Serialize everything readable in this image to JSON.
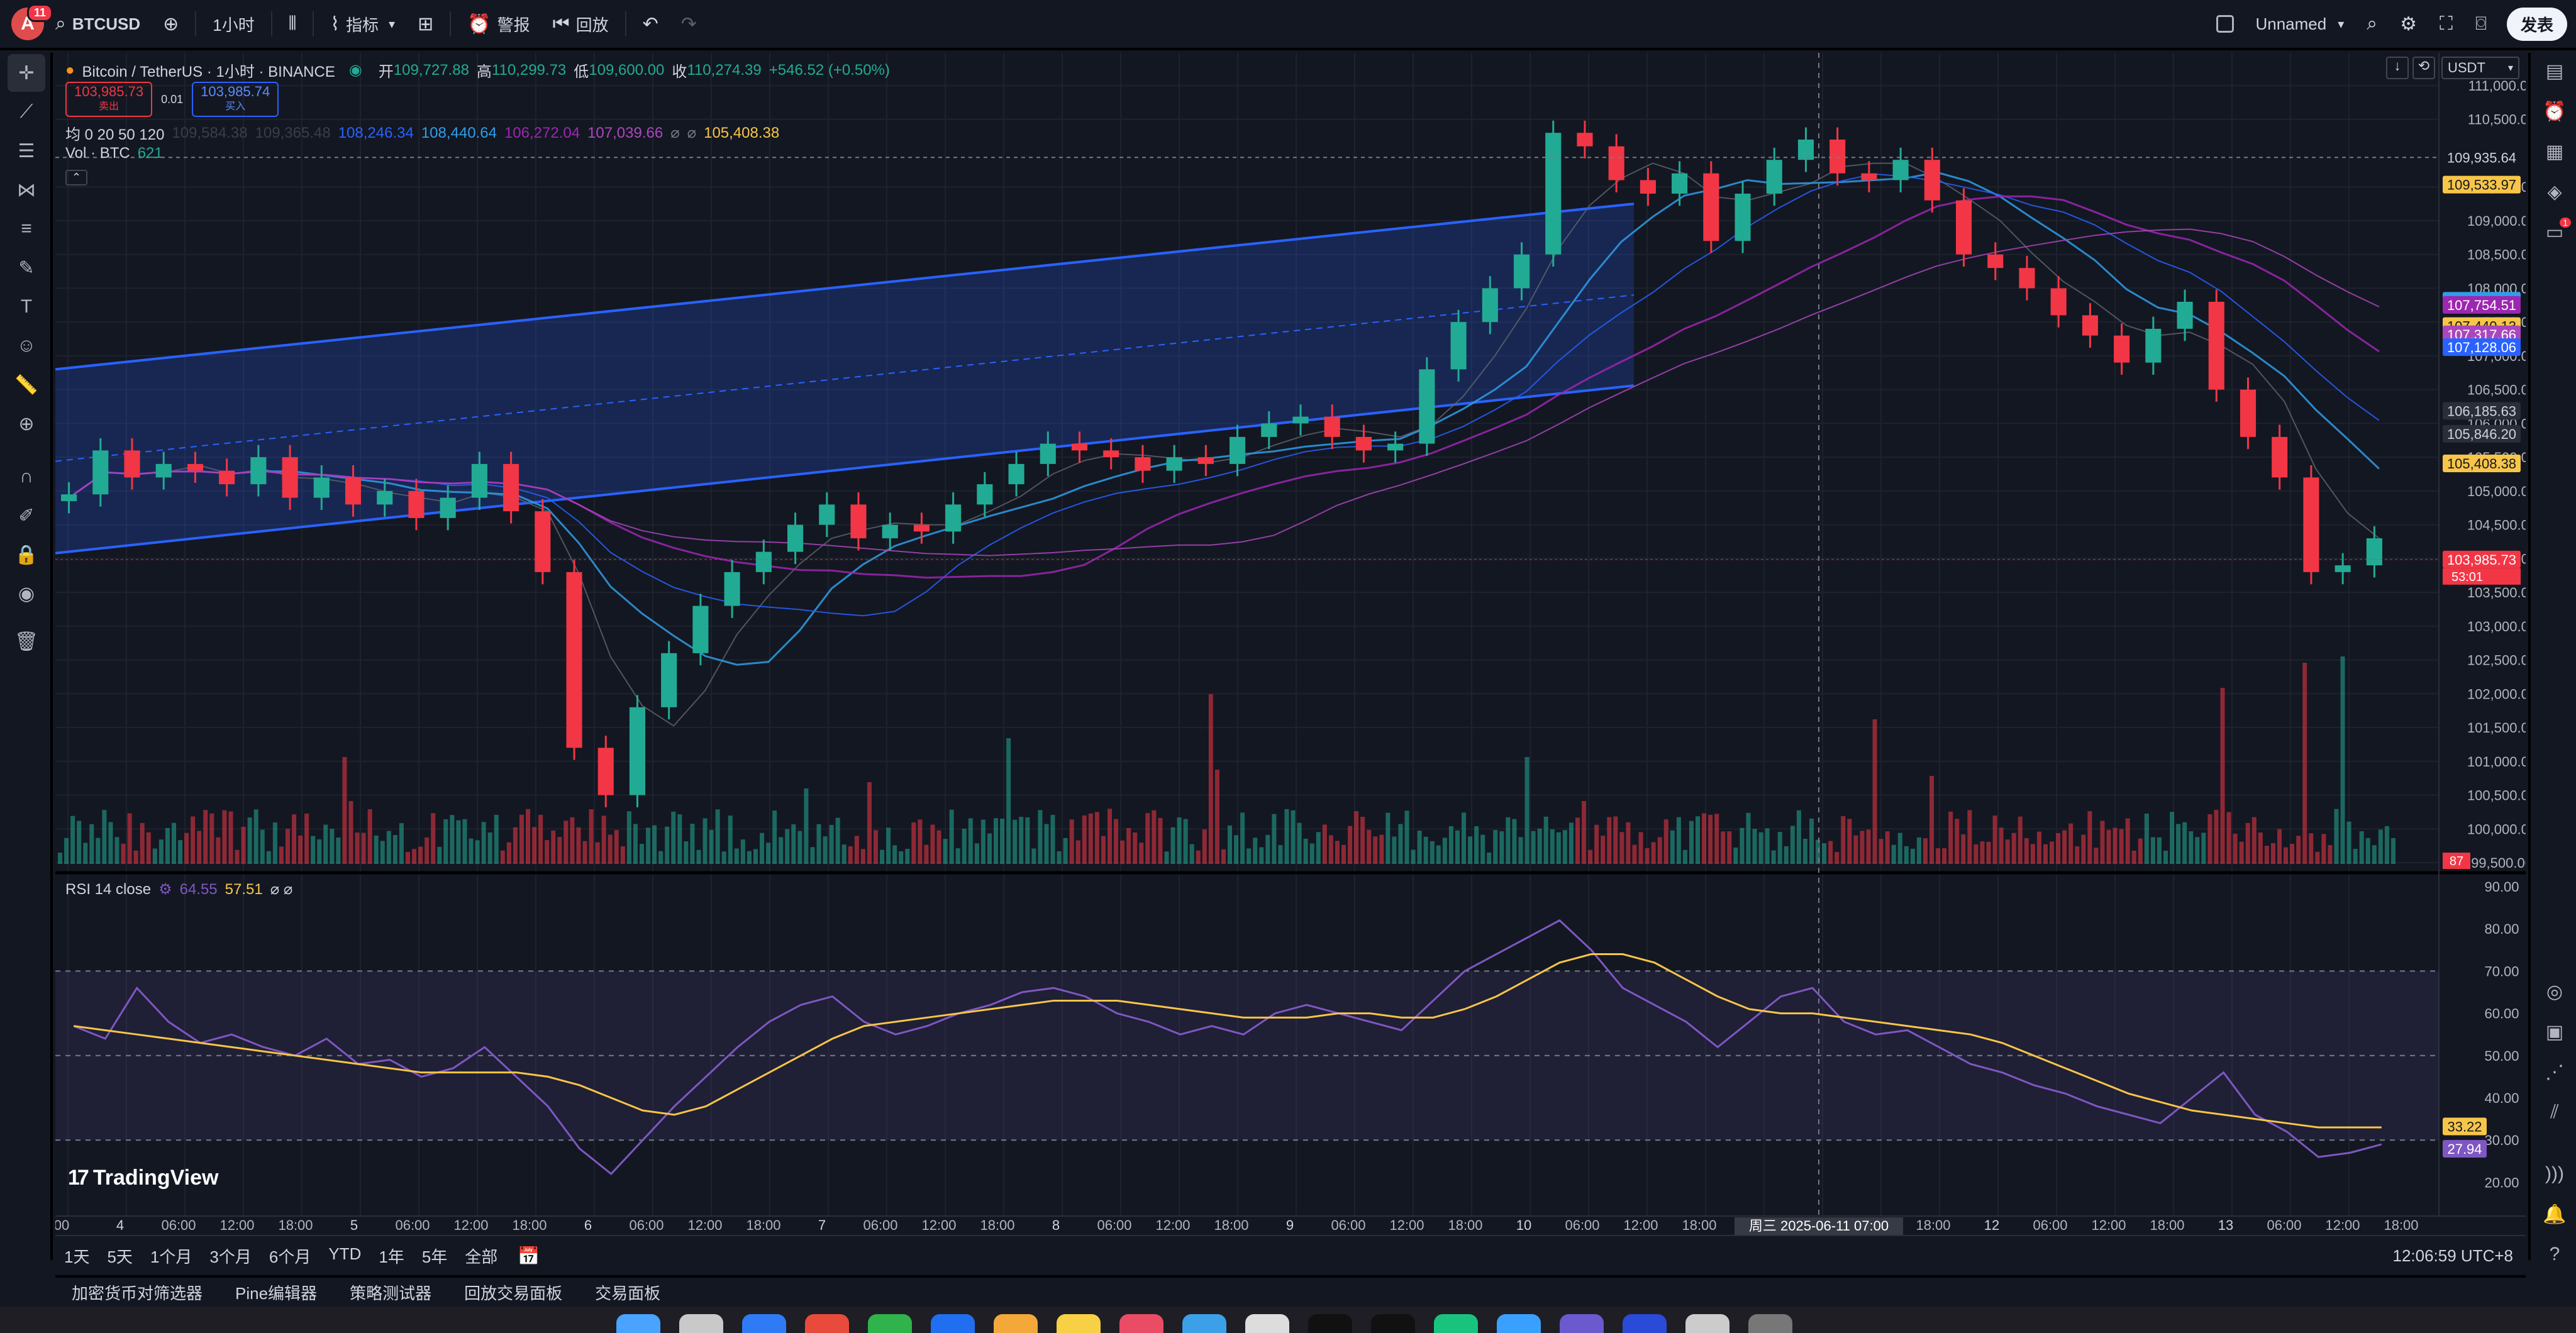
{
  "topbar": {
    "avatar_letter": "A",
    "notif_count": "11",
    "symbol": "BTCUSD",
    "interval": "1小时",
    "indicators_label": "指标",
    "alert_label": "警报",
    "replay_label": "回放",
    "layout_name": "Unnamed",
    "publish_label": "发表"
  },
  "legend": {
    "title": "Bitcoin / TetherUS · 1小时 · BINANCE",
    "open_label": "开",
    "open": "109,727.88",
    "high_label": "高",
    "high": "110,299.73",
    "low_label": "低",
    "low": "109,600.00",
    "close_label": "收",
    "close": "110,274.39",
    "change": "+546.52 (+0.50%)",
    "sell_price": "103,985.73",
    "sell_label": "卖出",
    "spread": "0.01",
    "buy_price": "103,985.74",
    "buy_label": "买入",
    "ma_label": "均 0 20 50 120",
    "ma_values": [
      "109,584.38",
      "109,365.48",
      "108,246.34",
      "108,440.64",
      "106,272.04",
      "107,039.66",
      "⌀",
      "⌀",
      "105,408.38"
    ],
    "ma_colors": [
      "#3a3e4a",
      "#3a3e4a",
      "#2962ff",
      "#2f9ee8",
      "#9c27b0",
      "#ab47bc",
      "#787b86",
      "#787b86",
      "#f7c548"
    ],
    "vol_label": "Vol · BTC",
    "vol_value": "621",
    "rsi_label": "RSI 14 close",
    "rsi_value": "64.55",
    "rsi_ma": "57.51",
    "rsi_na": "⌀ ⌀"
  },
  "currency": "USDT",
  "price_axis": [
    "111,000.00",
    "110,500.00",
    "109,500.00",
    "109,000.00",
    "108,500.00",
    "108,000.00",
    "107,500.00",
    "107,000.00",
    "106,500.00",
    "106,000.00",
    "105,500.00",
    "105,000.00",
    "104,500.00",
    "104,000.00",
    "103,500.00",
    "103,000.00",
    "102,500.00",
    "102,000.00",
    "101,500.00",
    "101,000.00",
    "100,500.00",
    "100,000.00",
    "99,500.00"
  ],
  "price_tags": [
    {
      "value": "109,935.64",
      "bg": "#131722",
      "fg": "#d1d4dc",
      "price": 109935.64
    },
    {
      "value": "109,533.97",
      "bg": "#f7c548",
      "fg": "#131722",
      "price": 109533.97
    },
    {
      "value": "107,814.52",
      "bg": "#2f9ee8",
      "fg": "#ffffff",
      "price": 107814.52
    },
    {
      "value": "107,754.51",
      "bg": "#9c27b0",
      "fg": "#ffffff",
      "price": 107754.51
    },
    {
      "value": "107,440.13",
      "bg": "#f7c548",
      "fg": "#131722",
      "price": 107440.13
    },
    {
      "value": "107,317.66",
      "bg": "#ab47bc",
      "fg": "#ffffff",
      "price": 107317.66
    },
    {
      "value": "107,128.06",
      "bg": "#2962ff",
      "fg": "#ffffff",
      "price": 107128.06
    },
    {
      "value": "106,185.63",
      "bg": "#2a2e39",
      "fg": "#d1d4dc",
      "price": 106185.63
    },
    {
      "value": "105,846.20",
      "bg": "#2a2e39",
      "fg": "#d1d4dc",
      "price": 105846.2
    },
    {
      "value": "105,408.38",
      "bg": "#f7c548",
      "fg": "#131722",
      "price": 105408.38
    },
    {
      "value": "103,985.73",
      "bg": "#f23645",
      "fg": "#ffffff",
      "price": 103985.73
    }
  ],
  "countdown": "53:01",
  "vol_tag": "87",
  "rsi_axis": [
    "90.00",
    "80.00",
    "70.00",
    "60.00",
    "50.00",
    "40.00",
    "30.00",
    "20.00"
  ],
  "rsi_tags": [
    {
      "value": "33.22",
      "bg": "#f7c548",
      "fg": "#131722",
      "level": 33.22
    },
    {
      "value": "27.94",
      "bg": "#7e57c2",
      "fg": "#ffffff",
      "level": 27.94
    }
  ],
  "time_axis": [
    "00",
    "4",
    "06:00",
    "12:00",
    "18:00",
    "5",
    "06:00",
    "12:00",
    "18:00",
    "6",
    "06:00",
    "12:00",
    "18:00",
    "7",
    "06:00",
    "12:00",
    "18:00",
    "8",
    "06:00",
    "12:00",
    "18:00",
    "9",
    "06:00",
    "12:00",
    "18:00",
    "10",
    "06:00",
    "12:00",
    "18:00",
    "11",
    "06:00",
    "12:00",
    "18:00",
    "12",
    "06:00",
    "12:00",
    "18:00",
    "13",
    "06:00",
    "12:00",
    "18:00"
  ],
  "crosshair_time": "周三 2025-06-11  07:00",
  "watermark": "TradingView",
  "ranges": [
    "1天",
    "5天",
    "1个月",
    "3个月",
    "6个月",
    "YTD",
    "1年",
    "5年",
    "全部"
  ],
  "clock": "12:06:59 UTC+8",
  "panels": [
    "加密货币对筛选器",
    "Pine编辑器",
    "策略测试器",
    "回放交易面板",
    "交易面板"
  ],
  "chart_data": {
    "type": "candlestick",
    "y_range": [
      99500,
      111000
    ],
    "rsi_range": [
      15,
      90
    ],
    "rsi_levels": [
      70,
      50,
      30
    ],
    "candles_sampled": [
      [
        104850,
        104950
      ],
      [
        104950,
        105600
      ],
      [
        105600,
        105200
      ],
      [
        105200,
        105400
      ],
      [
        105400,
        105300
      ],
      [
        105300,
        105100
      ],
      [
        105100,
        105500
      ],
      [
        105500,
        104900
      ],
      [
        104900,
        105200
      ],
      [
        105200,
        104800
      ],
      [
        104800,
        105000
      ],
      [
        105000,
        104600
      ],
      [
        104600,
        104900
      ],
      [
        104900,
        105400
      ],
      [
        105400,
        104700
      ],
      [
        104700,
        103800
      ],
      [
        103800,
        101200
      ],
      [
        101200,
        100500
      ],
      [
        100500,
        101800
      ],
      [
        101800,
        102600
      ],
      [
        102600,
        103300
      ],
      [
        103300,
        103800
      ],
      [
        103800,
        104100
      ],
      [
        104100,
        104500
      ],
      [
        104500,
        104800
      ],
      [
        104800,
        104300
      ],
      [
        104300,
        104500
      ],
      [
        104500,
        104400
      ],
      [
        104400,
        104800
      ],
      [
        104800,
        105100
      ],
      [
        105100,
        105400
      ],
      [
        105400,
        105700
      ],
      [
        105700,
        105600
      ],
      [
        105600,
        105500
      ],
      [
        105500,
        105300
      ],
      [
        105300,
        105500
      ],
      [
        105500,
        105400
      ],
      [
        105400,
        105800
      ],
      [
        105800,
        106000
      ],
      [
        106000,
        106100
      ],
      [
        106100,
        105800
      ],
      [
        105800,
        105600
      ],
      [
        105600,
        105700
      ],
      [
        105700,
        106800
      ],
      [
        106800,
        107500
      ],
      [
        107500,
        108000
      ],
      [
        108000,
        108500
      ],
      [
        108500,
        110300
      ],
      [
        110300,
        110100
      ],
      [
        110100,
        109600
      ],
      [
        109600,
        109400
      ],
      [
        109400,
        109700
      ],
      [
        109700,
        108700
      ],
      [
        108700,
        109400
      ],
      [
        109400,
        109900
      ],
      [
        109900,
        110200
      ],
      [
        110200,
        109700
      ],
      [
        109700,
        109600
      ],
      [
        109600,
        109900
      ],
      [
        109900,
        109300
      ],
      [
        109300,
        108500
      ],
      [
        108500,
        108300
      ],
      [
        108300,
        108000
      ],
      [
        108000,
        107600
      ],
      [
        107600,
        107300
      ],
      [
        107300,
        106900
      ],
      [
        106900,
        107400
      ],
      [
        107400,
        107800
      ],
      [
        107800,
        106500
      ],
      [
        106500,
        105800
      ],
      [
        105800,
        105200
      ],
      [
        105200,
        103800
      ],
      [
        103800,
        103900
      ],
      [
        103900,
        104300
      ]
    ],
    "rsi_sampled": [
      57,
      54,
      66,
      58,
      53,
      55,
      52,
      50,
      54,
      48,
      49,
      45,
      47,
      52,
      45,
      38,
      28,
      22,
      30,
      38,
      45,
      52,
      58,
      62,
      64,
      58,
      55,
      57,
      60,
      62,
      65,
      66,
      64,
      60,
      58,
      55,
      57,
      55,
      60,
      62,
      60,
      58,
      56,
      63,
      70,
      74,
      78,
      82,
      75,
      66,
      62,
      58,
      52,
      58,
      64,
      66,
      58,
      55,
      56,
      52,
      48,
      46,
      43,
      41,
      38,
      36,
      34,
      40,
      46,
      36,
      32,
      26,
      27,
      29
    ],
    "rsi_ma_sampled": [
      57,
      56,
      55,
      54,
      53,
      52,
      51,
      50,
      49,
      48,
      47,
      46,
      46,
      46,
      46,
      45,
      43,
      40,
      37,
      36,
      38,
      42,
      46,
      50,
      54,
      57,
      58,
      59,
      60,
      61,
      62,
      63,
      63,
      63,
      62,
      61,
      60,
      59,
      59,
      59,
      60,
      60,
      59,
      59,
      61,
      64,
      68,
      72,
      74,
      74,
      72,
      68,
      64,
      61,
      60,
      60,
      59,
      58,
      57,
      56,
      55,
      53,
      50,
      47,
      44,
      41,
      39,
      37,
      36,
      35,
      34,
      33,
      33,
      33
    ]
  }
}
